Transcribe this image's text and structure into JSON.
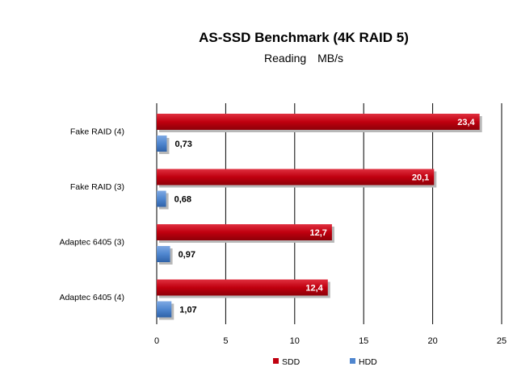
{
  "chart_data": {
    "type": "bar",
    "orientation": "horizontal",
    "title": "AS-SSD Benchmark (4K RAID 5)",
    "subtitle": "Reading",
    "unit": "MB/s",
    "categories": [
      "Fake RAID (4)",
      "Fake RAID (3)",
      "Adaptec 6405 (3)",
      "Adaptec 6405 (4)"
    ],
    "series": [
      {
        "name": "SDD",
        "color": "#c0000f",
        "values": [
          23.4,
          20.1,
          12.7,
          12.4
        ],
        "labels": [
          "23,4",
          "20,1",
          "12,7",
          "12,4"
        ]
      },
      {
        "name": "HDD",
        "color": "#4f86cf",
        "values": [
          0.73,
          0.68,
          0.97,
          1.07
        ],
        "labels": [
          "0,73",
          "0,68",
          "0,97",
          "1,07"
        ]
      }
    ],
    "xlim": [
      0,
      25
    ],
    "xticks": [
      "0",
      "5",
      "10",
      "15",
      "20",
      "25"
    ],
    "grid": true,
    "legend": "bottom"
  }
}
